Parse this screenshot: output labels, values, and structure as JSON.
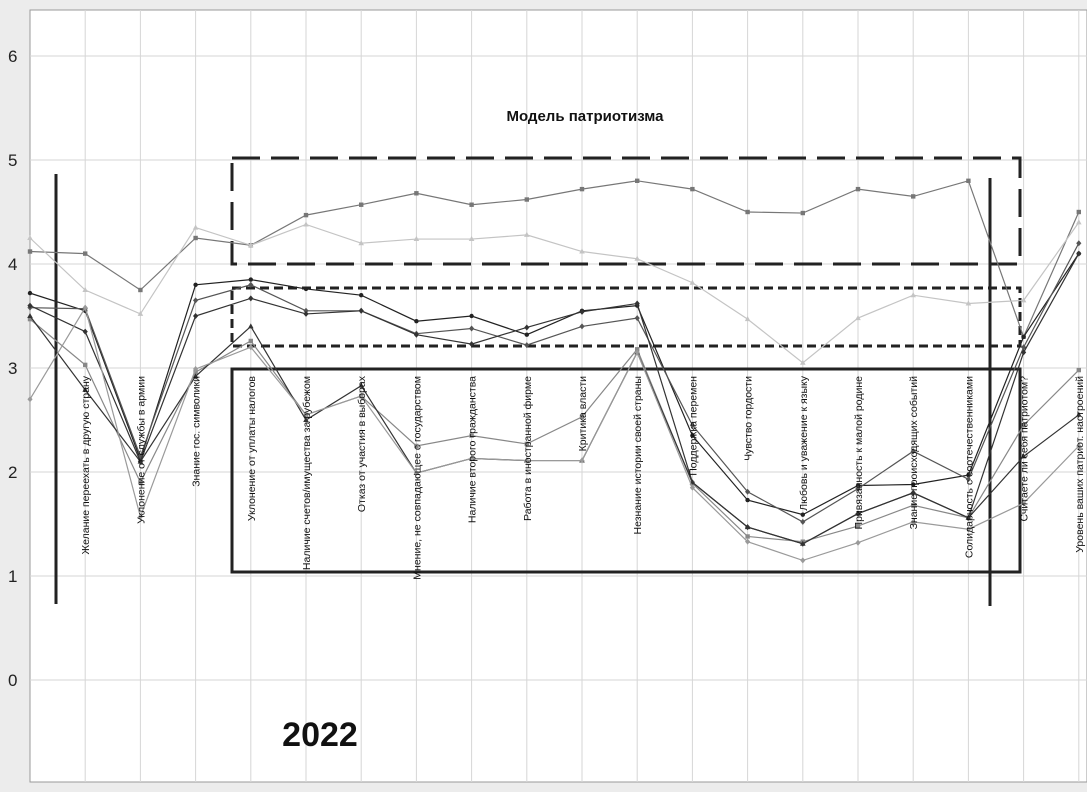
{
  "chart_data": {
    "type": "line",
    "title": "Модель патриотизма",
    "year_label": "2022",
    "xlabel": "",
    "ylabel": "",
    "ylim": [
      -1,
      6.5
    ],
    "yticks": [
      0,
      1,
      2,
      3,
      4,
      5,
      6
    ],
    "grid": true,
    "legend": "none",
    "categories": [
      "",
      "Желание переехать в другую страну",
      "Уклонение от службы в армии",
      "Знание гос. символики",
      "Уклонение от уплаты налогов",
      "Наличие счетов/имущества за рубежом",
      "Отказ от участия в выборах",
      "Мнение, не совпадающее с государством",
      "Наличие второго гражданства",
      "Работа в иностранной фирме",
      "Критика власти",
      "Незнание истории своей страны",
      "Поддержка перемен",
      "Чувство гордости",
      "Любовь и уважение к языку",
      "Привязанность к малой родине",
      "Знание происходящих событий",
      "Солидарность с соотечественниками",
      "Считаете ли себя патриотом?",
      "Уровень ваших патриот. настроений"
    ],
    "series": [
      {
        "color": "#777777",
        "marker": "square",
        "values": [
          4.12,
          4.1,
          3.75,
          4.25,
          4.18,
          4.47,
          4.57,
          4.68,
          4.57,
          4.62,
          4.72,
          4.8,
          4.72,
          4.5,
          4.49,
          4.72,
          4.65,
          4.8,
          3.3,
          4.5
        ]
      },
      {
        "color": "#c4c4c4",
        "marker": "triangle",
        "values": [
          4.25,
          3.75,
          3.52,
          4.35,
          4.18,
          4.38,
          4.2,
          4.24,
          4.24,
          4.28,
          4.12,
          4.05,
          3.82,
          3.47,
          3.05,
          3.48,
          3.7,
          3.62,
          3.65,
          4.4
        ]
      },
      {
        "color": "#222222",
        "marker": "dot",
        "values": [
          3.72,
          3.55,
          2.12,
          3.8,
          3.85,
          3.76,
          3.7,
          3.45,
          3.5,
          3.32,
          3.55,
          3.6,
          2.35,
          1.73,
          1.59,
          1.87,
          1.88,
          1.97,
          3.3,
          4.1
        ]
      },
      {
        "color": "#555555",
        "marker": "diamond",
        "values": [
          3.58,
          3.57,
          2.15,
          3.65,
          3.8,
          3.55,
          3.55,
          3.33,
          3.38,
          3.22,
          3.4,
          3.48,
          2.45,
          1.81,
          1.52,
          1.84,
          2.2,
          1.93,
          3.2,
          4.2
        ]
      },
      {
        "color": "#333333",
        "marker": "diamond",
        "values": [
          3.6,
          3.35,
          2.1,
          3.5,
          3.67,
          3.52,
          3.55,
          3.32,
          3.23,
          3.39,
          3.54,
          3.62,
          1.9,
          1.47,
          1.31,
          1.6,
          1.8,
          1.56,
          3.15,
          4.1
        ]
      },
      {
        "color": "#888888",
        "marker": "square",
        "values": [
          3.47,
          3.03,
          1.9,
          2.96,
          3.26,
          2.55,
          2.73,
          2.25,
          2.35,
          2.27,
          2.53,
          3.18,
          1.89,
          1.38,
          1.33,
          1.48,
          1.68,
          1.56,
          2.45,
          2.98
        ]
      },
      {
        "color": "#333333",
        "marker": "triangle",
        "values": [
          3.5,
          2.79,
          2.1,
          2.92,
          3.4,
          2.5,
          2.83,
          1.99,
          2.13,
          2.11,
          2.11,
          3.15,
          1.9,
          1.47,
          1.31,
          1.6,
          1.8,
          1.56,
          2.15,
          2.55
        ]
      },
      {
        "color": "#9a9a9a",
        "marker": "diamond",
        "values": [
          2.7,
          3.58,
          1.57,
          2.99,
          3.2,
          2.55,
          2.73,
          1.99,
          2.13,
          2.11,
          2.11,
          3.15,
          1.85,
          1.33,
          1.15,
          1.32,
          1.52,
          1.45,
          1.7,
          2.25
        ]
      }
    ]
  }
}
